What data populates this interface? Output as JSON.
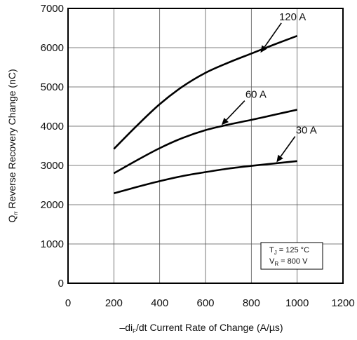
{
  "chart_data": {
    "type": "line",
    "title": "",
    "xlabel": {
      "prefix": "–di",
      "sub": "F",
      "suffix": "/dt Current Rate of Change (A/µs)"
    },
    "ylabel": {
      "main": "Q",
      "sub": "rr",
      "suffix": " Reverse Recovery Change (nC)"
    },
    "xlim": [
      0,
      1200
    ],
    "ylim": [
      0,
      7000
    ],
    "xticks": [
      0,
      200,
      400,
      600,
      800,
      1000,
      1200
    ],
    "yticks": [
      0,
      1000,
      2000,
      3000,
      4000,
      5000,
      6000,
      7000
    ],
    "grid": true,
    "series": [
      {
        "name": "120 A",
        "x": [
          200,
          300,
          400,
          500,
          600,
          700,
          800,
          900,
          1000
        ],
        "y": [
          3420,
          4010,
          4560,
          5010,
          5360,
          5620,
          5850,
          6080,
          6300
        ]
      },
      {
        "name": "60 A",
        "x": [
          200,
          300,
          400,
          500,
          600,
          700,
          800,
          900,
          1000
        ],
        "y": [
          2800,
          3130,
          3440,
          3700,
          3900,
          4040,
          4160,
          4290,
          4420
        ]
      },
      {
        "name": "30 A",
        "x": [
          200,
          300,
          400,
          500,
          600,
          700,
          800,
          900,
          1000
        ],
        "y": [
          2290,
          2450,
          2600,
          2730,
          2830,
          2920,
          2990,
          3050,
          3110
        ]
      }
    ],
    "annotations": [
      {
        "label": "120 A",
        "series": "120 A",
        "arrow_to": [
          840,
          5870
        ],
        "label_at": [
          980,
          6700
        ]
      },
      {
        "label": "60 A",
        "series": "60 A",
        "arrow_to": [
          670,
          4030
        ],
        "label_at": [
          820,
          4720
        ]
      },
      {
        "label": "30 A",
        "series": "30 A",
        "arrow_to": [
          910,
          3080
        ],
        "label_at": [
          1040,
          3810
        ]
      }
    ],
    "conditions": {
      "tj": {
        "pre": "T",
        "sub": "J",
        "post": " = 125 °C"
      },
      "vr": {
        "pre": "V",
        "sub": "R",
        "post": " = 800 V"
      }
    }
  }
}
